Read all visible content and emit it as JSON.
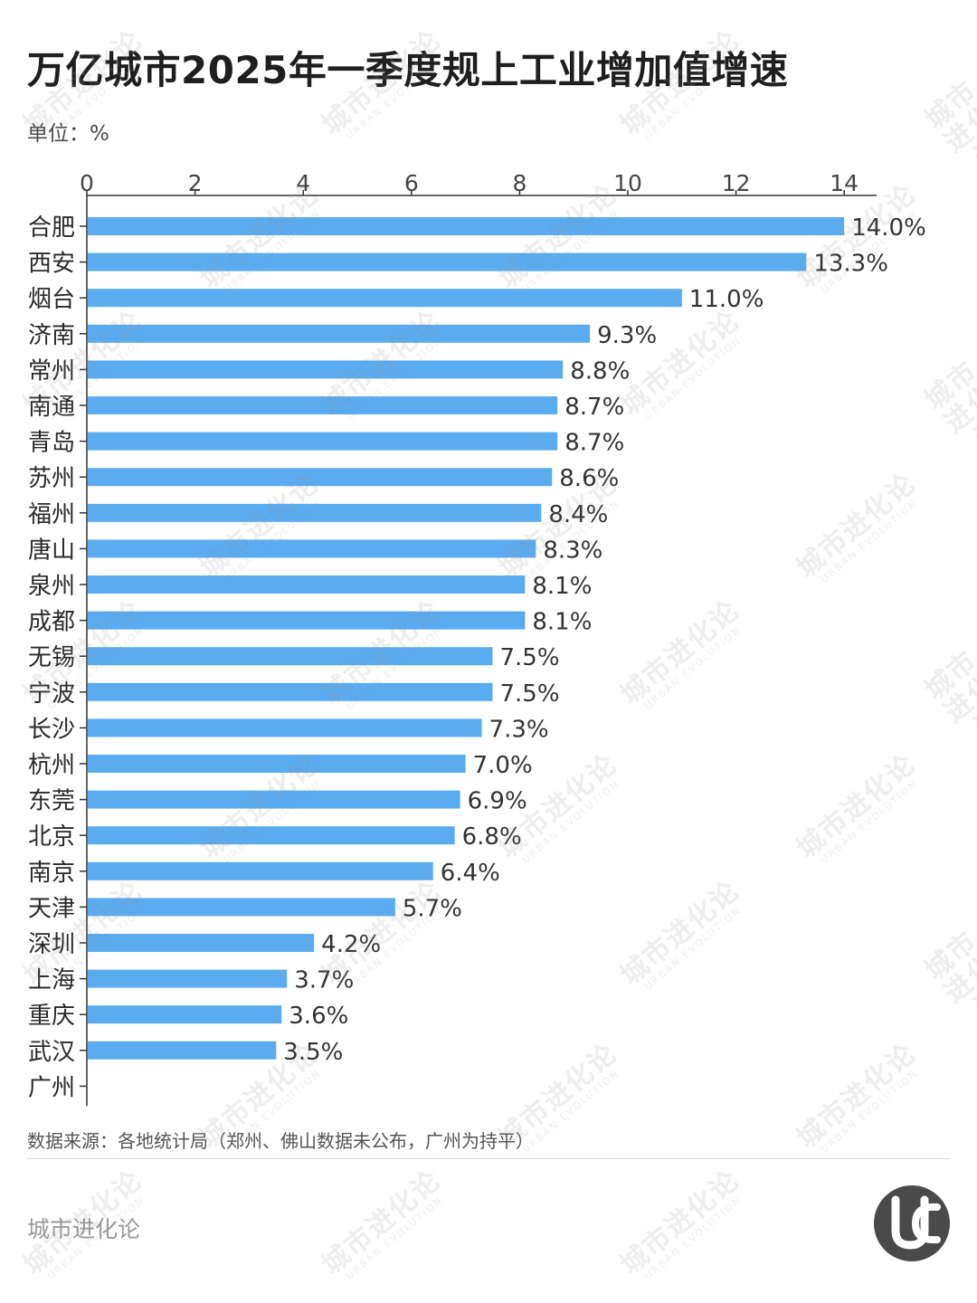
{
  "header": {
    "title": "万亿城市2025年一季度规上工业增加值增速",
    "unit": "单位：%"
  },
  "chart_data": {
    "type": "bar",
    "orientation": "horizontal",
    "categories": [
      "合肥",
      "西安",
      "烟台",
      "济南",
      "常州",
      "南通",
      "青岛",
      "苏州",
      "福州",
      "唐山",
      "泉州",
      "成都",
      "无锡",
      "宁波",
      "长沙",
      "杭州",
      "东莞",
      "北京",
      "南京",
      "天津",
      "深圳",
      "上海",
      "重庆",
      "武汉",
      "广州"
    ],
    "values": [
      14.0,
      13.3,
      11.0,
      9.3,
      8.8,
      8.7,
      8.7,
      8.6,
      8.4,
      8.3,
      8.1,
      8.1,
      7.5,
      7.5,
      7.3,
      7.0,
      6.9,
      6.8,
      6.4,
      5.7,
      4.2,
      3.7,
      3.6,
      3.5,
      0
    ],
    "data_labels": [
      "14.0%",
      "13.3%",
      "11.0%",
      "9.3%",
      "8.8%",
      "8.7%",
      "8.7%",
      "8.6%",
      "8.4%",
      "8.3%",
      "8.1%",
      "8.1%",
      "7.5%",
      "7.5%",
      "7.3%",
      "7.0%",
      "6.9%",
      "6.8%",
      "6.4%",
      "5.7%",
      "4.2%",
      "3.7%",
      "3.6%",
      "3.5%",
      ""
    ],
    "xticks": [
      0,
      2,
      4,
      6,
      8,
      10,
      12,
      14
    ],
    "xlim": [
      0,
      14.6
    ],
    "axis_position": "top",
    "grid": false,
    "bar_color": "#5aabf0"
  },
  "footer": {
    "source": "数据来源：各地统计局（郑州、佛山数据未公布，广州为持平）",
    "brand": "城市进化论",
    "logo_text": "URBAN EVOLUTION",
    "watermark_main": "城市进化论",
    "watermark_sub": "URBAN EVOLUTION"
  },
  "colors": {
    "bar": "#5aabf0",
    "title": "#1f1f1f",
    "brand": "#9a9a9a"
  }
}
